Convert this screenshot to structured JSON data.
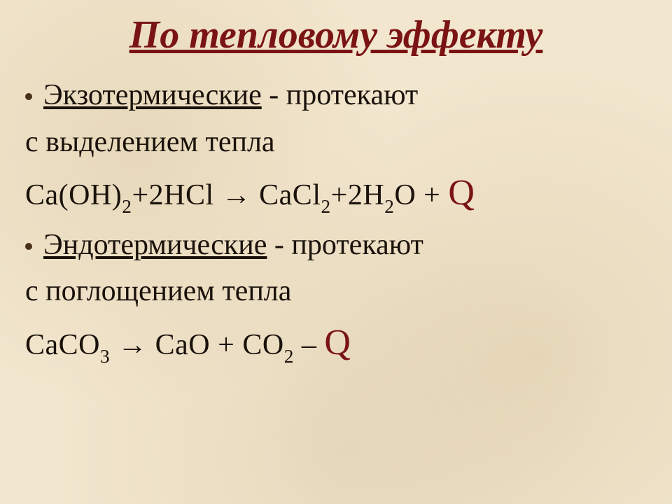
{
  "colors": {
    "title": "#7a1414",
    "body": "#1a120b",
    "bullet": "#4a3018",
    "q": "#7a1414",
    "background": "#f2e6ce"
  },
  "fontsize": {
    "title": 56,
    "body": 42,
    "q": 52
  },
  "title": "По тепловому эффекту",
  "exo": {
    "term": "Экзотермические",
    "desc1": " - протекают",
    "desc2": "с выделением тепла",
    "formula_pre": "Ca(OH)",
    "formula_sub1": "2",
    "formula_mid1": "+2HCl ",
    "arrow": "→",
    "formula_mid2": " CaCl",
    "formula_sub2": "2",
    "formula_mid3": "+2H",
    "formula_sub3": "2",
    "formula_end": "O + ",
    "q": "Q"
  },
  "endo": {
    "term": "Эндотермические",
    "desc1": " - протекают",
    "desc2": "с поглощением тепла",
    "formula_pre": "CaCO",
    "formula_sub1": "3",
    "formula_mid1": " ",
    "arrow": "→",
    "formula_mid2": " CaO + CO",
    "formula_sub2": "2",
    "formula_end": " – ",
    "q": "Q"
  }
}
